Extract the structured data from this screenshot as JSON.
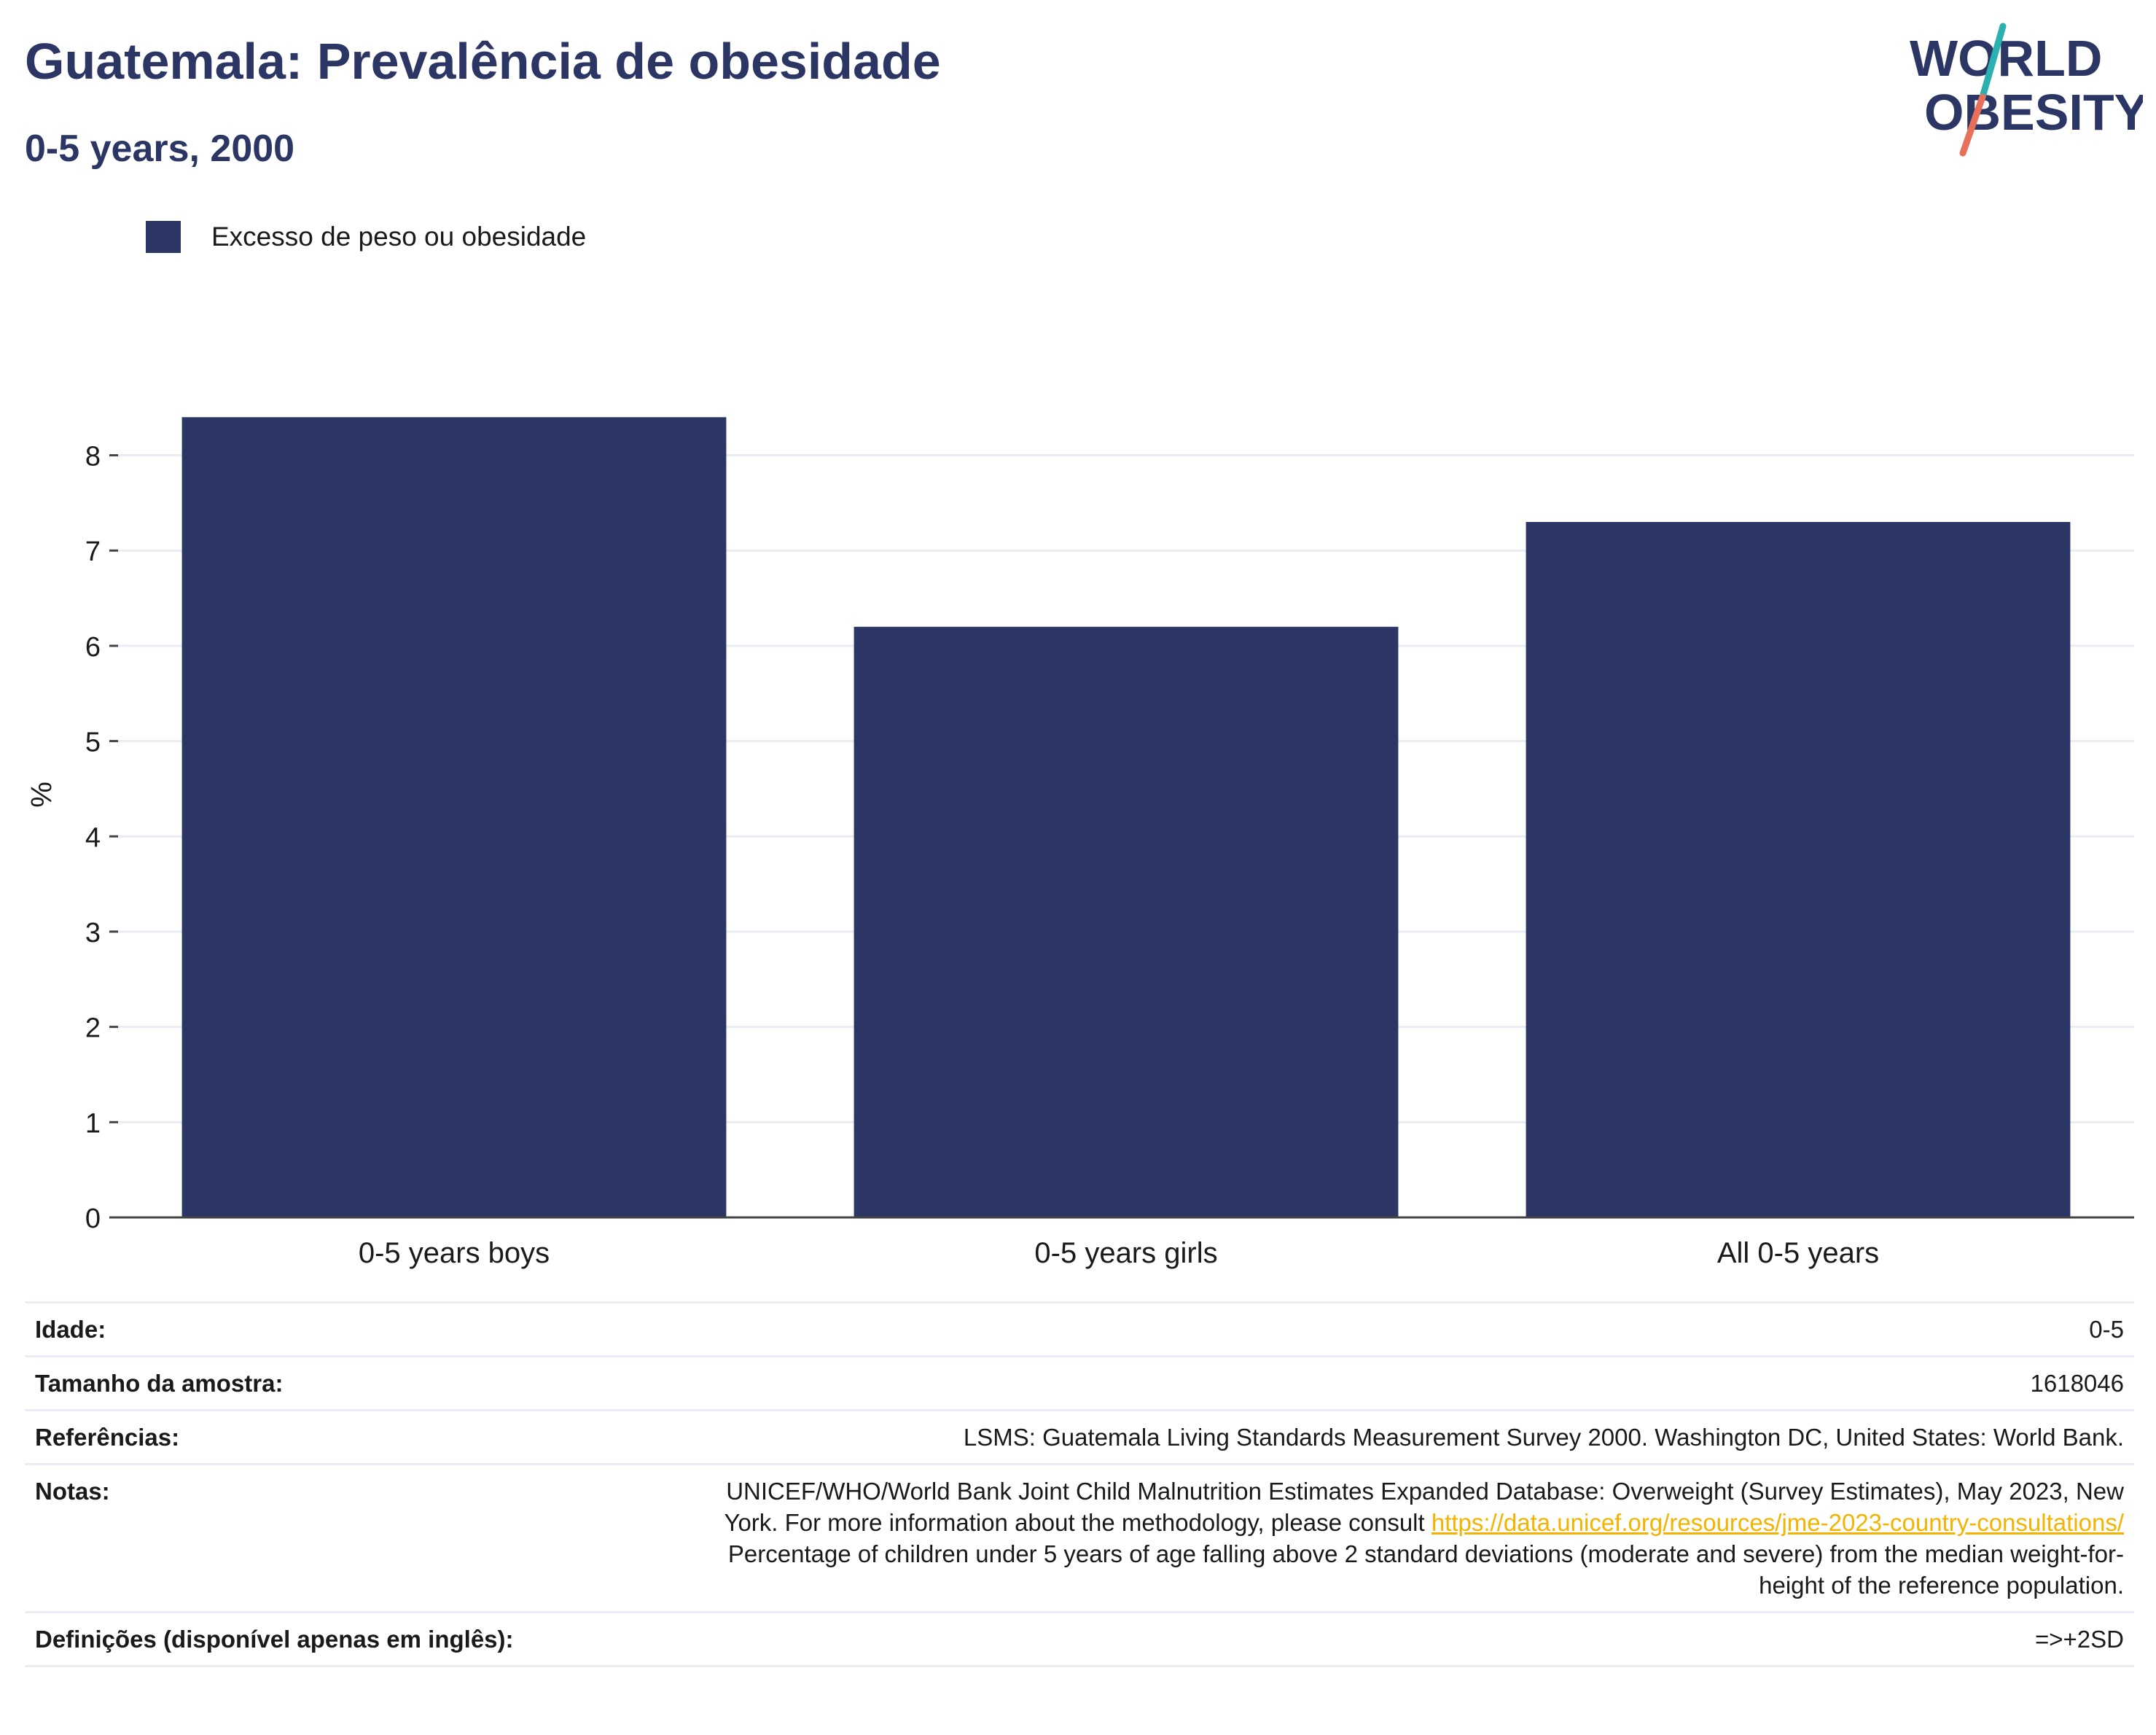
{
  "header": {
    "title": "Guatemala: Prevalência de obesidade",
    "subtitle": "0-5 years, 2000"
  },
  "logo": {
    "line1": "WORLD",
    "line2": "OBESITY",
    "colors": {
      "text": "#2b3664",
      "slash_top": "#2ab0b0",
      "slash_bottom": "#e8705a"
    }
  },
  "colors": {
    "bar": "#2b3664",
    "grid": "#e9ecf3",
    "axis": "#444444",
    "link": "#f5b301"
  },
  "chart_data": {
    "type": "bar",
    "categories": [
      "0-5 years boys",
      "0-5 years girls",
      "All 0-5 years"
    ],
    "series": [
      {
        "name": "Excesso de peso ou obesidade",
        "values": [
          8.4,
          6.2,
          7.3
        ]
      }
    ],
    "ylabel": "%",
    "xlabel": "",
    "ylim": [
      0,
      8.8
    ],
    "yticks": [
      0,
      1,
      2,
      3,
      4,
      5,
      6,
      7,
      8
    ],
    "grid": true,
    "legend_position": "top-left"
  },
  "info": {
    "rows": [
      {
        "key": "Idade:",
        "value": "0-5"
      },
      {
        "key": "Tamanho da amostra:",
        "value": "1618046"
      },
      {
        "key": "Referências:",
        "value": "LSMS: Guatemala Living Standards Measurement Survey 2000. Washington DC, United States: World Bank."
      }
    ],
    "notes": {
      "key": "Notas:",
      "text_before": "UNICEF/WHO/World Bank Joint Child Malnutrition Estimates Expanded Database: Overweight (Survey Estimates), May 2023, New York. For more information about the methodology, please consult ",
      "link": "https://data.unicef.org/resources/jme-2023-country-consultations/",
      "text_after": " Percentage of children under 5 years of age falling above 2 standard deviations (moderate and severe) from the median weight-for-height of the reference population."
    },
    "definitions": {
      "key": "Definições (disponível apenas em inglês):",
      "value": "=>+2SD"
    }
  }
}
